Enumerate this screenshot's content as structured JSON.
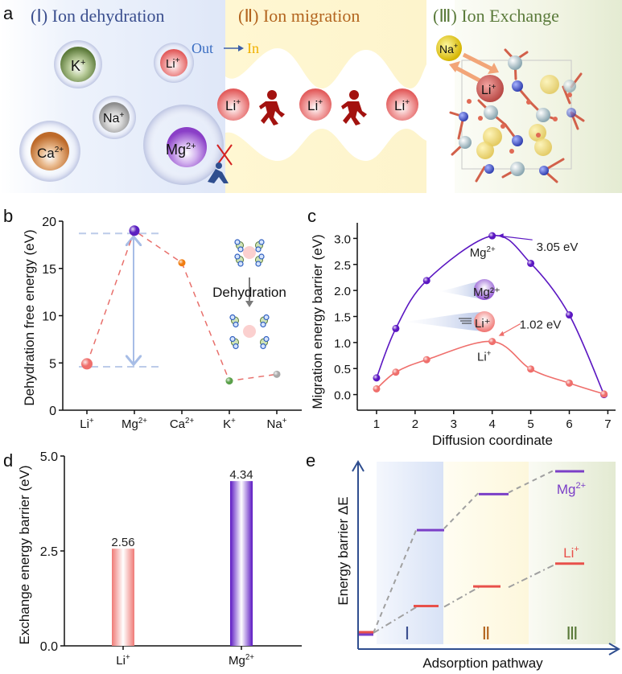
{
  "panel_a": {
    "letter": "a",
    "sections": [
      {
        "numeral": "(Ⅰ)",
        "title": "Ion dehydration",
        "color": "#3b4f8f"
      },
      {
        "numeral": "(Ⅱ)",
        "title": "Ion migration",
        "color": "#b3651f"
      },
      {
        "numeral": "(Ⅲ)",
        "title": "Ion Exchange",
        "color": "#5a7a3a"
      }
    ],
    "out_label": "Out",
    "in_label": "In",
    "ions_dehydration": [
      {
        "name": "K",
        "charge": "+",
        "color": "#6f8f4a"
      },
      {
        "name": "Li",
        "charge": "+",
        "color": "#e57373"
      },
      {
        "name": "Na",
        "charge": "+",
        "color": "#9a9a9a"
      },
      {
        "name": "Ca",
        "charge": "2+",
        "color": "#c77a3a"
      },
      {
        "name": "Mg",
        "charge": "2+",
        "color": "#9b5cc9"
      }
    ],
    "migration_ions": [
      "Li",
      "Li",
      "Li"
    ],
    "migration_charge": "+",
    "exchange_ions": [
      {
        "name": "Na",
        "charge": "+",
        "color": "#e6c800"
      },
      {
        "name": "Li",
        "charge": "+",
        "color": "#c0504d"
      }
    ]
  },
  "chart_data": [
    {
      "id": "b",
      "type": "scatter",
      "letter": "b",
      "categories": [
        "Li⁺",
        "Mg²⁺",
        "Ca²⁺",
        "K⁺",
        "Na⁺"
      ],
      "values": [
        4.9,
        19.0,
        15.6,
        3.1,
        3.8
      ],
      "colors": [
        "#ef6f6c",
        "#5a1fc0",
        "#f07c10",
        "#5aa04a",
        "#a8a8a8"
      ],
      "ylabel": "Dehydration free energy (eV)",
      "ylim": [
        0,
        20
      ],
      "yticks": [
        "0",
        "5",
        "10",
        "15",
        "20"
      ],
      "connector": "dashed",
      "reference_lines": [
        18.7,
        4.6
      ],
      "annotation": "Dehydration"
    },
    {
      "id": "c",
      "type": "line",
      "letter": "c",
      "xlabel": "Diffusion coordinate",
      "ylabel": "Migration energy barrier (eV)",
      "xlim": [
        0.5,
        7.2
      ],
      "ylim": [
        -0.3,
        3.3
      ],
      "xticks": [
        "1",
        "2",
        "3",
        "4",
        "5",
        "6",
        "7"
      ],
      "yticks": [
        "0.0",
        "0.5",
        "1.0",
        "1.5",
        "2.0",
        "2.5",
        "3.0"
      ],
      "series": [
        {
          "name": "Mg²⁺",
          "color": "#5b17c2",
          "x": [
            1,
            1.5,
            2.3,
            4,
            5,
            6,
            6.9
          ],
          "values": [
            0.32,
            1.27,
            2.19,
            3.05,
            2.52,
            1.53,
            0.0
          ],
          "peak_label": "3.05 eV"
        },
        {
          "name": "Li⁺",
          "color": "#ef6f6c",
          "x": [
            1,
            1.5,
            2.3,
            4,
            5,
            6,
            6.9
          ],
          "values": [
            0.11,
            0.43,
            0.67,
            1.02,
            0.49,
            0.22,
            0.01
          ],
          "peak_label": "1.02 eV"
        }
      ],
      "inset_labels": [
        "Mg²⁺",
        "Li⁺"
      ]
    },
    {
      "id": "d",
      "type": "bar",
      "letter": "d",
      "categories": [
        "Li⁺",
        "Mg²⁺"
      ],
      "values": [
        2.56,
        4.34
      ],
      "data_labels": [
        "2.56",
        "4.34"
      ],
      "colors": [
        "#ef6f6c",
        "#5b17c2"
      ],
      "ylabel": "Exchange energy barrier (eV)",
      "ylim": [
        0,
        5
      ],
      "yticks": [
        "0.0",
        "2.5",
        "5.0"
      ]
    },
    {
      "id": "e",
      "type": "line",
      "letter": "e",
      "xlabel": "Adsorption pathway",
      "ylabel": "Energy barrier ΔE",
      "stages": [
        "Ⅰ",
        "Ⅱ",
        "Ⅲ"
      ],
      "stage_colors": [
        "#3b4f8f",
        "#b3651f",
        "#5a7a3a"
      ],
      "series": [
        {
          "name": "Mg²⁺",
          "color": "#7b3fc7",
          "levels": [
            0.0,
            0.64,
            0.86,
            1.0
          ]
        },
        {
          "name": "Li⁺",
          "color": "#e8504a",
          "levels": [
            0.0,
            0.16,
            0.28,
            0.42
          ]
        }
      ]
    }
  ]
}
